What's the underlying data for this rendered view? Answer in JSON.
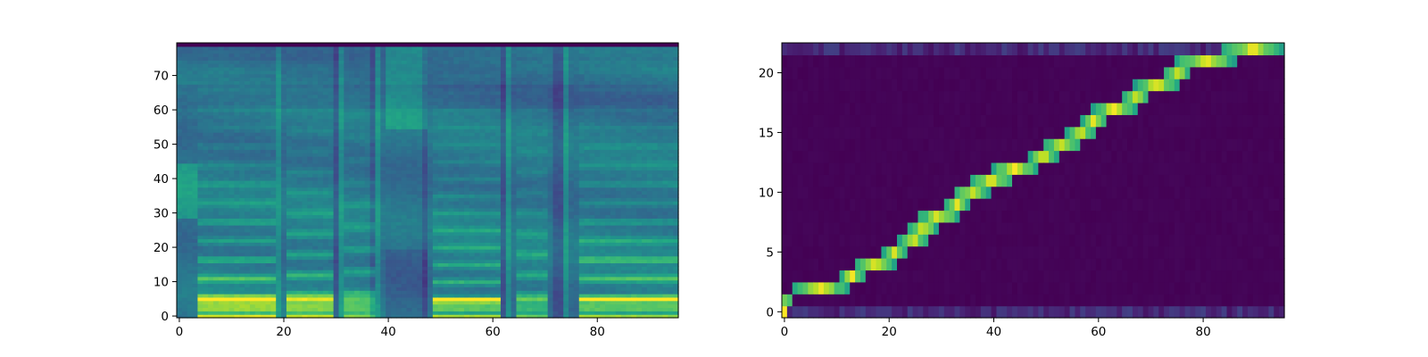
{
  "chart_data": [
    {
      "type": "heatmap",
      "colormap": "viridis",
      "x_ticks": [
        0,
        20,
        40,
        60,
        80
      ],
      "y_ticks": [
        0,
        10,
        20,
        30,
        40,
        50,
        60,
        70
      ],
      "xlim": [
        -0.5,
        95.5
      ],
      "ylim": [
        -0.5,
        79.5
      ],
      "n_frames": 96,
      "n_bins": 80,
      "voiced_segments": [
        {
          "start": 4,
          "end": 18,
          "strength": 1.0,
          "pitch_spacing": 5.5
        },
        {
          "start": 21,
          "end": 29,
          "strength": 0.9,
          "pitch_spacing": 6.0
        },
        {
          "start": 32,
          "end": 37,
          "strength": 0.7,
          "pitch_spacing": 6.5
        },
        {
          "start": 49,
          "end": 61,
          "strength": 0.85,
          "pitch_spacing": 5.0
        },
        {
          "start": 65,
          "end": 70,
          "strength": 0.7,
          "pitch_spacing": 6.0
        },
        {
          "start": 77,
          "end": 95,
          "strength": 0.95,
          "pitch_spacing": 5.5
        }
      ],
      "bright_columns": [
        19,
        31,
        38,
        63,
        74
      ],
      "dark_columns": [
        30,
        37,
        47,
        62,
        72,
        73
      ],
      "fricative_segment": {
        "start": 40,
        "end": 47,
        "low_bin": 55,
        "high_bin": 80
      }
    },
    {
      "type": "heatmap",
      "colormap": "viridis",
      "x_ticks": [
        0,
        20,
        40,
        60,
        80
      ],
      "y_ticks": [
        0,
        5,
        10,
        15,
        20
      ],
      "xlim": [
        -0.5,
        95.5
      ],
      "ylim": [
        -0.5,
        22.5
      ],
      "n_frames": 96,
      "n_tokens": 23,
      "alignment_path": [
        {
          "token": 1,
          "start": 0,
          "end": 1
        },
        {
          "token": 2,
          "start": 2,
          "end": 12
        },
        {
          "token": 3,
          "start": 11,
          "end": 15
        },
        {
          "token": 4,
          "start": 14,
          "end": 21
        },
        {
          "token": 5,
          "start": 19,
          "end": 23
        },
        {
          "token": 6,
          "start": 22,
          "end": 27
        },
        {
          "token": 7,
          "start": 24,
          "end": 29
        },
        {
          "token": 8,
          "start": 26,
          "end": 33
        },
        {
          "token": 9,
          "start": 31,
          "end": 35
        },
        {
          "token": 10,
          "start": 33,
          "end": 39
        },
        {
          "token": 11,
          "start": 36,
          "end": 43
        },
        {
          "token": 12,
          "start": 40,
          "end": 48
        },
        {
          "token": 13,
          "start": 47,
          "end": 52
        },
        {
          "token": 14,
          "start": 50,
          "end": 56
        },
        {
          "token": 15,
          "start": 54,
          "end": 59
        },
        {
          "token": 16,
          "start": 57,
          "end": 61
        },
        {
          "token": 17,
          "start": 59,
          "end": 67
        },
        {
          "token": 18,
          "start": 65,
          "end": 69
        },
        {
          "token": 19,
          "start": 67,
          "end": 75
        },
        {
          "token": 20,
          "start": 73,
          "end": 77
        },
        {
          "token": 21,
          "start": 75,
          "end": 86
        },
        {
          "token": 22,
          "start": 84,
          "end": 95
        }
      ],
      "edge_rows": [
        0,
        22
      ]
    }
  ]
}
